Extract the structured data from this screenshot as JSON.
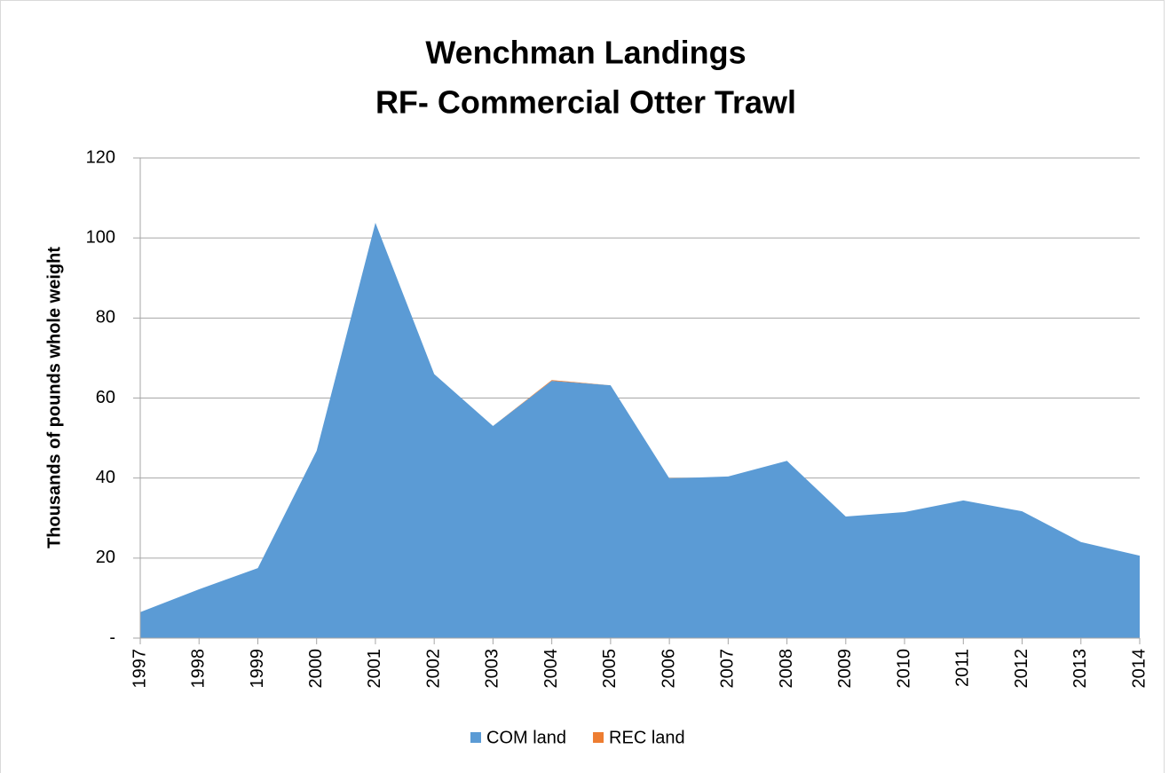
{
  "chart_data": {
    "type": "area",
    "stacked": true,
    "title": [
      "Wenchman Landings",
      "RF- Commercial Otter Trawl"
    ],
    "y_label": "Thousands  of pounds whole weight",
    "categories": [
      "1997",
      "1998",
      "1999",
      "2000",
      "2001",
      "2002",
      "2003",
      "2004",
      "2005",
      "2006",
      "2007",
      "2008",
      "2009",
      "2010",
      "2011",
      "2012",
      "2013",
      "2014"
    ],
    "series": [
      {
        "name": "COM land",
        "color": "#5b9bd5",
        "values": [
          6.5,
          12.2,
          17.5,
          46.8,
          103.8,
          66,
          53,
          64.3,
          63.2,
          39.9,
          40.4,
          44.3,
          30.4,
          31.5,
          34.4,
          31.7,
          24,
          20.6
        ]
      },
      {
        "name": "REC land",
        "color": "#ed7d31",
        "values": [
          0,
          0,
          0,
          0,
          0,
          0,
          0,
          0.2,
          0,
          0,
          0,
          0,
          0,
          0,
          0,
          0,
          0,
          0
        ]
      }
    ],
    "ylim": [
      0,
      120
    ],
    "yticks": [
      {
        "value": 0,
        "label": "-"
      },
      20,
      40,
      60,
      80,
      100,
      120
    ],
    "grid": true,
    "legend": "bottom"
  }
}
